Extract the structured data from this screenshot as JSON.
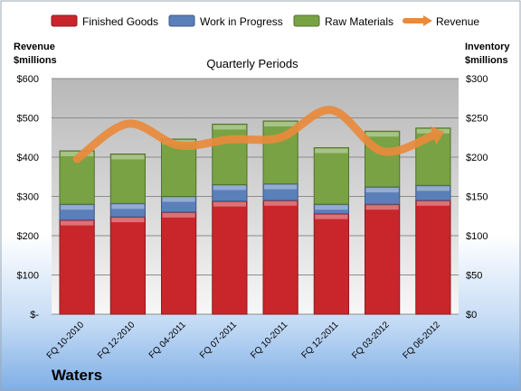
{
  "chart_data": {
    "type": "bar",
    "title": "Quarterly Periods",
    "company": "Waters",
    "left_axis_label": [
      "Revenue",
      "$millions"
    ],
    "right_axis_label": [
      "Inventory",
      "$millions"
    ],
    "categories": [
      "FQ 10-2010",
      "FQ 12-2010",
      "FQ 04-2011",
      "FQ 07-2011",
      "FQ 10-2011",
      "FQ 12-2011",
      "FQ 03-2012",
      "FQ 06-2012"
    ],
    "left_ylim": [
      0,
      600
    ],
    "left_ticks": [
      "$-",
      "$100",
      "$200",
      "$300",
      "$400",
      "$500",
      "$600"
    ],
    "right_ylim": [
      0,
      300
    ],
    "right_ticks": [
      "$0",
      "$50",
      "$100",
      "$150",
      "$200",
      "$250",
      "$300"
    ],
    "legend_position": "top",
    "series": [
      {
        "name": "Finished Goods",
        "type": "stacked-bar",
        "axis": "right",
        "color": "#c9262c",
        "values": [
          120,
          124,
          130,
          144,
          145,
          128,
          140,
          145
        ]
      },
      {
        "name": "Work in Progress",
        "type": "stacked-bar",
        "axis": "right",
        "color": "#5b7fb9",
        "values": [
          20,
          17,
          20,
          21,
          21,
          12,
          22,
          19
        ]
      },
      {
        "name": "Raw Materials",
        "type": "stacked-bar",
        "axis": "right",
        "color": "#78a244",
        "values": [
          68,
          63,
          73,
          77,
          80,
          72,
          71,
          73
        ]
      },
      {
        "name": "Revenue",
        "type": "line",
        "axis": "left",
        "color": "#e98a3c",
        "values": [
          395,
          485,
          430,
          445,
          450,
          520,
          415,
          455
        ]
      }
    ]
  }
}
